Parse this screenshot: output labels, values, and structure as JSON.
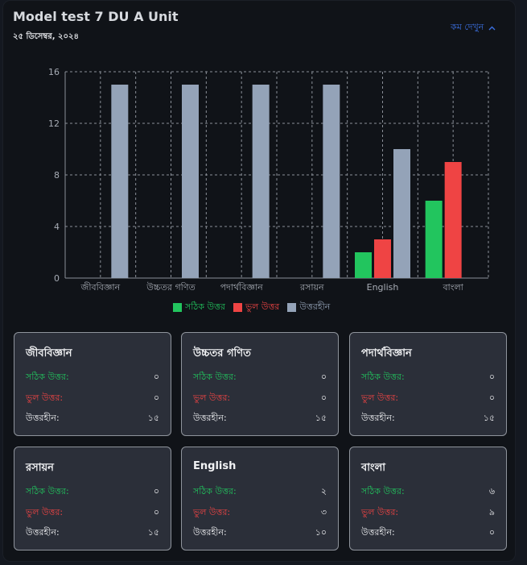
{
  "header": {
    "title": "Model test 7 DU A Unit",
    "date": "২৫ ডিসেম্বর, ২০২৪",
    "toggle_label": "কম দেখুন"
  },
  "colors": {
    "correct": "#22c55e",
    "wrong": "#ef4444",
    "unanswered": "#94a3b8",
    "accent": "#3b6fe0"
  },
  "chart_data": {
    "type": "bar",
    "categories": [
      "জীববিজ্ঞান",
      "উচ্চতর গণিত",
      "পদার্থবিজ্ঞান",
      "রসায়ন",
      "English",
      "বাংলা"
    ],
    "series": [
      {
        "name": "সঠিক উত্তর",
        "color": "#22c55e",
        "values": [
          0,
          0,
          0,
          0,
          2,
          6
        ]
      },
      {
        "name": "ভুল উত্তর",
        "color": "#ef4444",
        "values": [
          0,
          0,
          0,
          0,
          3,
          9
        ]
      },
      {
        "name": "উত্তরহীন",
        "color": "#94a3b8",
        "values": [
          15,
          15,
          15,
          15,
          10,
          0
        ]
      }
    ],
    "yticks": [
      0,
      4,
      8,
      12,
      16
    ],
    "ylim": [
      0,
      16
    ],
    "grid": true,
    "legend_position": "bottom"
  },
  "labels": {
    "correct": "সঠিক উত্তর:",
    "wrong": "ভুল উত্তর:",
    "unanswered": "উত্তরহীন:"
  },
  "cards": [
    {
      "subject": "জীববিজ্ঞান",
      "correct": "০",
      "wrong": "০",
      "unanswered": "১৫"
    },
    {
      "subject": "উচ্চতর গণিত",
      "correct": "০",
      "wrong": "০",
      "unanswered": "১৫"
    },
    {
      "subject": "পদার্থবিজ্ঞান",
      "correct": "০",
      "wrong": "০",
      "unanswered": "১৫"
    },
    {
      "subject": "রসায়ন",
      "correct": "০",
      "wrong": "০",
      "unanswered": "১৫"
    },
    {
      "subject": "English",
      "correct": "২",
      "wrong": "৩",
      "unanswered": "১০"
    },
    {
      "subject": "বাংলা",
      "correct": "৬",
      "wrong": "৯",
      "unanswered": "০"
    }
  ]
}
